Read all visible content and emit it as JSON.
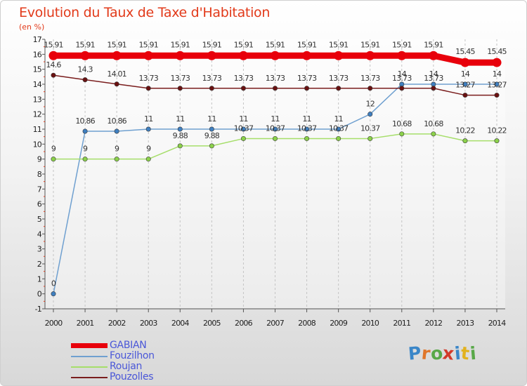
{
  "title": "Evolution du Taux de Taxe d'Habitation",
  "unit": "(en %)",
  "brand": "Proxiti",
  "chart_data": {
    "type": "line",
    "title": "Evolution du Taux de Taxe d'Habitation",
    "ylabel": "(en %)",
    "xlabel": "",
    "x": [
      "2000",
      "2001",
      "2002",
      "2003",
      "2004",
      "2005",
      "2006",
      "2007",
      "2008",
      "2009",
      "2010",
      "2011",
      "2012",
      "2013",
      "2014"
    ],
    "ylim": [
      -1,
      17
    ],
    "yticks": [
      -1,
      0,
      1,
      2,
      3,
      4,
      5,
      6,
      7,
      8,
      9,
      10,
      11,
      12,
      13,
      14,
      15,
      16,
      17
    ],
    "grid": "vertical dashed",
    "legend_position": "bottom-left",
    "series": [
      {
        "name": "GABIAN",
        "color": "#e8000b",
        "values": [
          15.91,
          15.91,
          15.91,
          15.91,
          15.91,
          15.91,
          15.91,
          15.91,
          15.91,
          15.91,
          15.91,
          15.91,
          15.91,
          15.45,
          15.45
        ],
        "labels": [
          "15.91",
          "15.91",
          "15.91",
          "15.91",
          "15.91",
          "15.91",
          "15.91",
          "15.91",
          "15.91",
          "15.91",
          "15.91",
          "15.91",
          "15.91",
          "15.45",
          "15.45"
        ]
      },
      {
        "name": "Fouzilhon",
        "color": "#6fa0d0",
        "point_color": "#3f7fc0",
        "values": [
          0,
          10.86,
          10.86,
          11,
          11,
          11,
          11,
          11,
          11,
          11,
          12,
          14,
          14,
          14,
          14
        ],
        "labels": [
          "0",
          "10.86",
          "10.86",
          "11",
          "11",
          "11",
          "11",
          "11",
          "11",
          "11",
          "12",
          "14",
          "14",
          "14",
          "14"
        ]
      },
      {
        "name": "Roujan",
        "color": "#a6de6a",
        "point_color": "#8bd14a",
        "values": [
          9,
          9,
          9,
          9,
          9.88,
          9.88,
          10.37,
          10.37,
          10.37,
          10.37,
          10.37,
          10.68,
          10.68,
          10.22,
          10.22
        ],
        "labels": [
          "9",
          "9",
          "9",
          "9",
          "9.88",
          "9.88",
          "10.37",
          "10.37",
          "10.37",
          "10.37",
          "10.37",
          "10.68",
          "10.68",
          "10.22",
          "10.22"
        ]
      },
      {
        "name": "Pouzolles",
        "color": "#7a1d1d",
        "point_color": "#6a1111",
        "values": [
          14.6,
          14.3,
          14.01,
          13.73,
          13.73,
          13.73,
          13.73,
          13.73,
          13.73,
          13.73,
          13.73,
          13.73,
          13.73,
          13.27,
          13.27
        ],
        "labels": [
          "14.6",
          "14.3",
          "14.01",
          "13.73",
          "13.73",
          "13.73",
          "13.73",
          "13.73",
          "13.73",
          "13.73",
          "13.73",
          "13.73",
          "13.73",
          "13.27",
          "13.27"
        ]
      }
    ]
  }
}
